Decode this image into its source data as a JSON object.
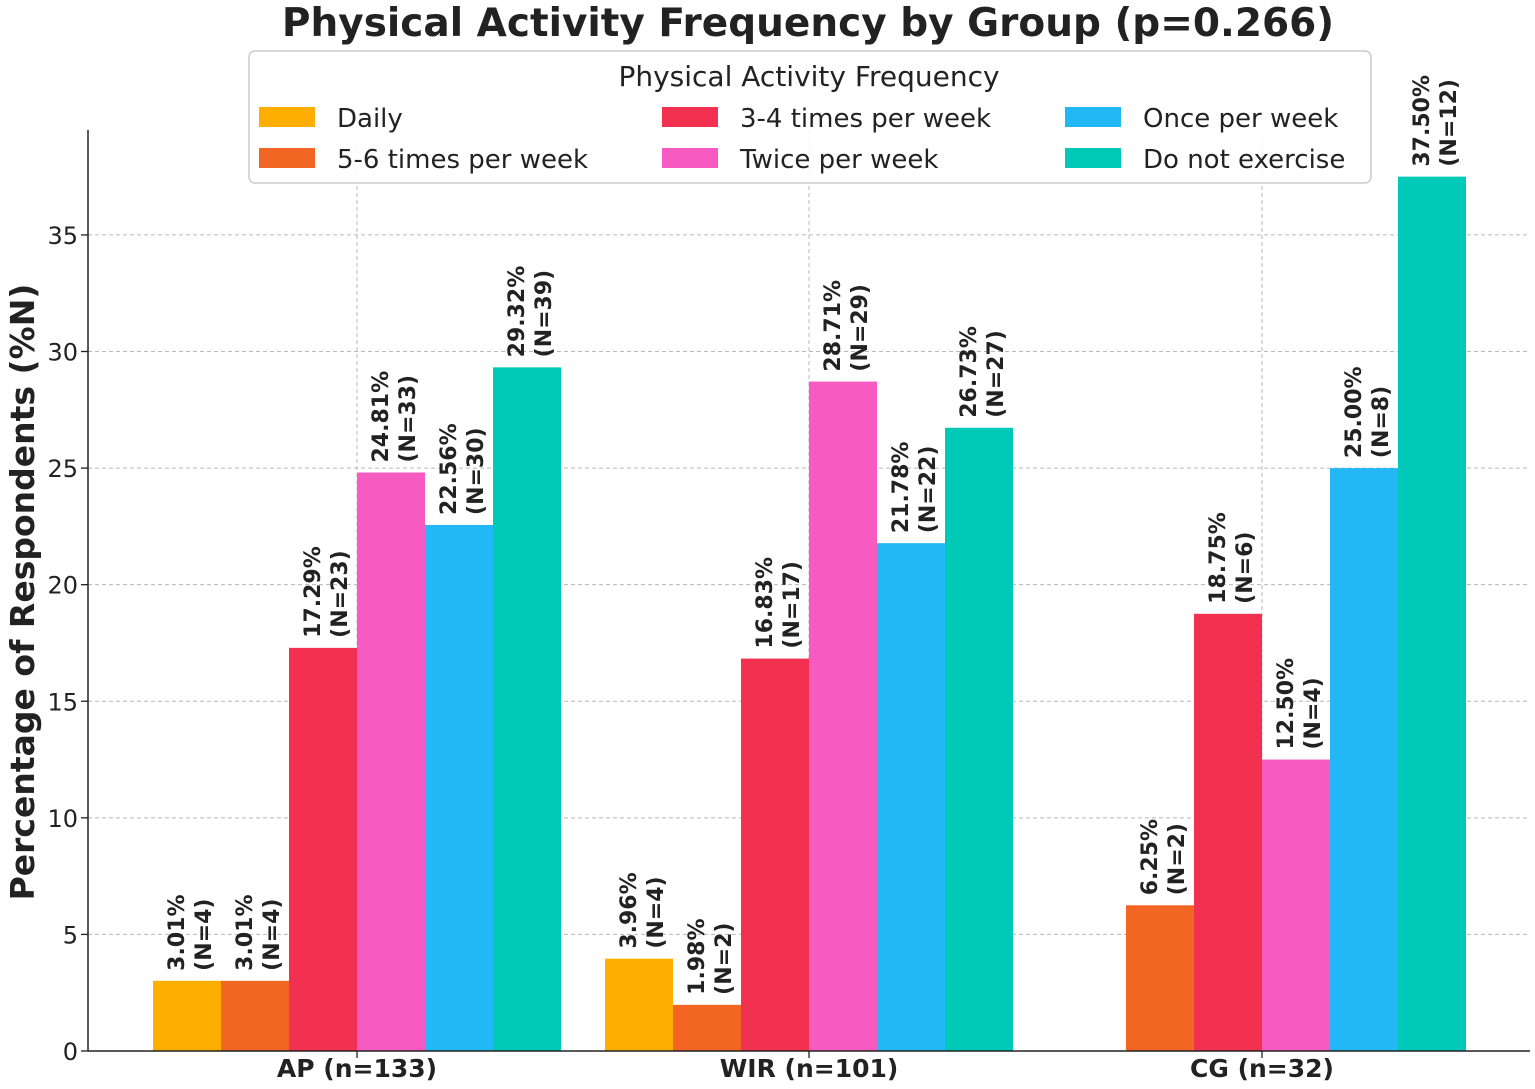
{
  "chart_data": {
    "type": "bar",
    "title": "Physical Activity Frequency by Group (p=0.266)",
    "xlabel": "",
    "ylabel": "Percentage of Respondents (%N)",
    "ylim": [
      0,
      39.5
    ],
    "yticks": [
      0,
      5,
      10,
      15,
      20,
      25,
      30,
      35
    ],
    "grid": true,
    "legend": {
      "title": "Physical Activity Frequency",
      "placement": "top-center",
      "columns": 3
    },
    "categories": [
      "AP (n=133)",
      "WIR (n=101)",
      "CG (n=32)"
    ],
    "series": [
      {
        "name": "Daily",
        "color": "#FFAE00",
        "values": [
          3.01,
          3.96,
          0
        ],
        "labels": [
          [
            "3.01%",
            "(N=4)"
          ],
          [
            "3.96%",
            "(N=4)"
          ],
          null
        ]
      },
      {
        "name": "5-6 times per week",
        "color": "#F26522",
        "values": [
          3.01,
          1.98,
          6.25
        ],
        "labels": [
          [
            "3.01%",
            "(N=4)"
          ],
          [
            "1.98%",
            "(N=2)"
          ],
          [
            "6.25%",
            "(N=2)"
          ]
        ]
      },
      {
        "name": "3-4 times per week",
        "color": "#F2304F",
        "values": [
          17.29,
          16.83,
          18.75
        ],
        "labels": [
          [
            "17.29%",
            "(N=23)"
          ],
          [
            "16.83%",
            "(N=17)"
          ],
          [
            "18.75%",
            "(N=6)"
          ]
        ]
      },
      {
        "name": "Twice per week",
        "color": "#F75AC0",
        "values": [
          24.81,
          28.71,
          12.5
        ],
        "labels": [
          [
            "24.81%",
            "(N=33)"
          ],
          [
            "28.71%",
            "(N=29)"
          ],
          [
            "12.50%",
            "(N=4)"
          ]
        ]
      },
      {
        "name": "Once per week",
        "color": "#21B8F5",
        "values": [
          22.56,
          21.78,
          25.0
        ],
        "labels": [
          [
            "22.56%",
            "(N=30)"
          ],
          [
            "21.78%",
            "(N=22)"
          ],
          [
            "25.00%",
            "(N=8)"
          ]
        ]
      },
      {
        "name": "Do not exercise",
        "color": "#00C9B7",
        "values": [
          29.32,
          26.73,
          37.5
        ],
        "labels": [
          [
            "29.32%",
            "(N=39)"
          ],
          [
            "26.73%",
            "(N=27)"
          ],
          [
            "37.50%",
            "(N=12)"
          ]
        ]
      }
    ]
  }
}
